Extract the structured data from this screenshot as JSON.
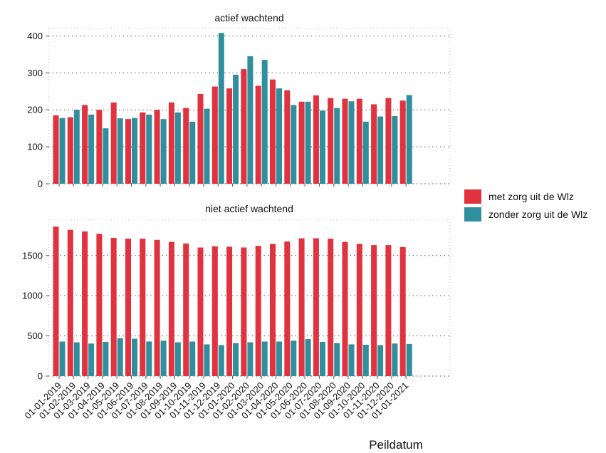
{
  "chart_data": {
    "type": "bar",
    "xlabel": "Peildatum",
    "categories": [
      "01-01-2019",
      "01-02-2019",
      "01-03-2019",
      "01-04-2019",
      "01-05-2019",
      "01-06-2019",
      "01-07-2019",
      "01-08-2019",
      "01-09-2019",
      "01-10-2019",
      "01-11-2019",
      "01-12-2019",
      "01-01-2020",
      "01-02-2020",
      "01-03-2020",
      "01-04-2020",
      "01-05-2020",
      "01-06-2020",
      "01-07-2020",
      "01-08-2020",
      "01-09-2020",
      "01-10-2020",
      "01-11-2020",
      "01-12-2020",
      "01-01-2021"
    ],
    "legend": {
      "position": "right",
      "entries": [
        {
          "name": "met zorg uit de Wlz",
          "color": "#e0323f"
        },
        {
          "name": "zonder zorg uit de Wlz",
          "color": "#2f8f9d"
        }
      ]
    },
    "panels": [
      {
        "title": "actief wachtend",
        "ylim": [
          0,
          420
        ],
        "yticks": [
          0,
          100,
          200,
          300,
          400
        ],
        "grid": true,
        "series": [
          {
            "name": "met zorg uit de Wlz",
            "values": [
              185,
              180,
              213,
              200,
              220,
              175,
              193,
              200,
              220,
              205,
              243,
              263,
              258,
              310,
              265,
              282,
              253,
              222,
              239,
              232,
              230,
              230,
              215,
              232,
              225
            ]
          },
          {
            "name": "zonder zorg uit de Wlz",
            "values": [
              178,
              200,
              187,
              150,
              177,
              178,
              187,
              175,
              193,
              168,
              203,
              408,
              295,
              345,
              335,
              258,
              213,
              222,
              198,
              205,
              223,
              168,
              182,
              183,
              240
            ]
          }
        ]
      },
      {
        "title": "niet actief wachtend",
        "ylim": [
          0,
          1950
        ],
        "yticks": [
          0,
          500,
          1000,
          1500
        ],
        "grid": true,
        "series": [
          {
            "name": "met zorg uit de Wlz",
            "values": [
              1860,
              1820,
              1800,
              1770,
              1720,
              1710,
              1710,
              1695,
              1670,
              1650,
              1600,
              1615,
              1610,
              1600,
              1620,
              1645,
              1675,
              1715,
              1715,
              1710,
              1670,
              1645,
              1630,
              1630,
              1605
            ]
          },
          {
            "name": "zonder zorg uit de Wlz",
            "values": [
              430,
              420,
              405,
              425,
              470,
              465,
              430,
              440,
              420,
              430,
              395,
              385,
              410,
              420,
              430,
              430,
              440,
              460,
              425,
              410,
              395,
              390,
              385,
              405,
              400
            ]
          }
        ]
      }
    ]
  }
}
